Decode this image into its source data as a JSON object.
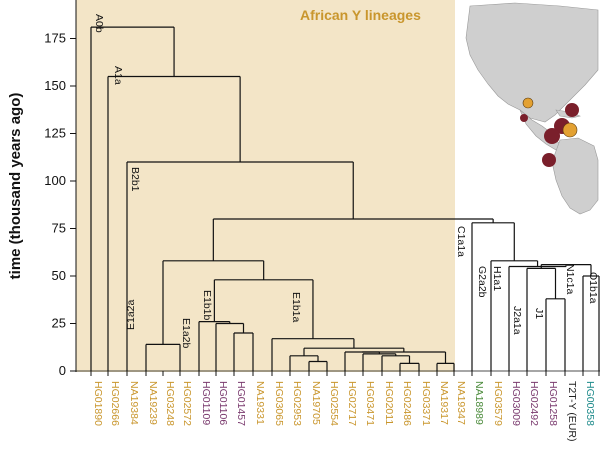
{
  "colors": {
    "african_panel": "#f3e5c7",
    "african_label": "#c9962d",
    "purple_label": "#7a3a6e",
    "green_label": "#4a8a3a",
    "teal_label": "#1d8a8a",
    "dark_label": "#222222",
    "map_land": "#cfcfcf",
    "map_dot_maroon": "#7a1f2b",
    "map_dot_orange": "#e3a132"
  },
  "title": "African Y lineages",
  "axis": {
    "ylabel": "time (thousand years ago)",
    "ticks": [
      "175",
      "150",
      "125",
      "100",
      "75",
      "50",
      "25",
      "0"
    ]
  },
  "clade_labels": [
    "A0b",
    "A1a",
    "B2b1",
    "E1a2a",
    "E1a2b",
    "E1b1b",
    "E1b1a",
    "C1a1a",
    "G2a2b",
    "H1a1",
    "J2a1a",
    "J1",
    "N1c1a",
    "O1b1a"
  ],
  "leaves": [
    {
      "label": "HG01890",
      "color": "african"
    },
    {
      "label": "HG02666",
      "color": "african"
    },
    {
      "label": "NA19384",
      "color": "african"
    },
    {
      "label": "NA19239",
      "color": "african"
    },
    {
      "label": "HG03248",
      "color": "african"
    },
    {
      "label": "HG02572",
      "color": "african"
    },
    {
      "label": "HG01109",
      "color": "purple"
    },
    {
      "label": "HG01106",
      "color": "purple"
    },
    {
      "label": "HG01457",
      "color": "purple"
    },
    {
      "label": "NA19331",
      "color": "african"
    },
    {
      "label": "HG03065",
      "color": "african"
    },
    {
      "label": "HG02953",
      "color": "african"
    },
    {
      "label": "NA19705",
      "color": "african"
    },
    {
      "label": "HG02554",
      "color": "african"
    },
    {
      "label": "HG02717",
      "color": "african"
    },
    {
      "label": "HG03471",
      "color": "african"
    },
    {
      "label": "HG02011",
      "color": "african"
    },
    {
      "label": "HG02486",
      "color": "african"
    },
    {
      "label": "HG03371",
      "color": "african"
    },
    {
      "label": "NA19317",
      "color": "african"
    },
    {
      "label": "NA19347",
      "color": "african"
    },
    {
      "label": "NA18989",
      "color": "green"
    },
    {
      "label": "HG03579",
      "color": "african"
    },
    {
      "label": "HG03009",
      "color": "purple"
    },
    {
      "label": "HG02492",
      "color": "purple"
    },
    {
      "label": "HG01258",
      "color": "purple"
    },
    {
      "label": "T2T-Y (EUR)",
      "color": "dark"
    },
    {
      "label": "HG00358",
      "color": "teal"
    },
    {
      "label": "NA18534",
      "color": "green"
    }
  ]
}
